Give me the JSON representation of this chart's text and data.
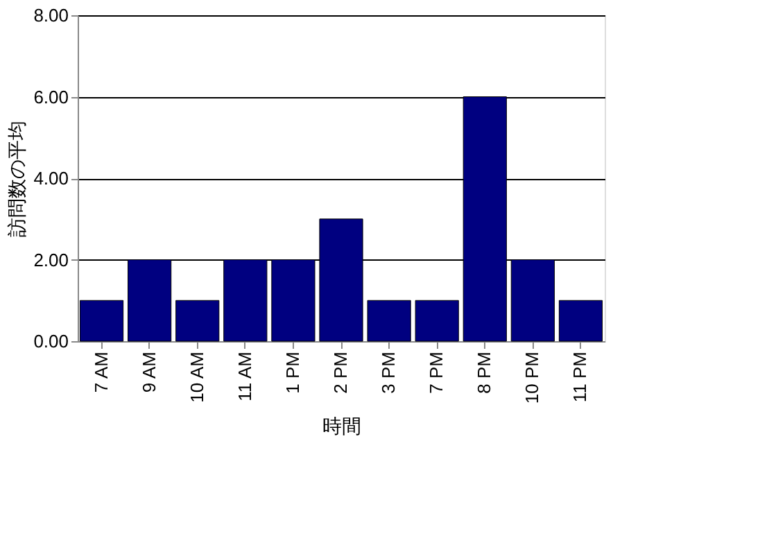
{
  "chart_data": {
    "type": "bar",
    "xlabel": "時間",
    "ylabel": "訪問数の平均",
    "categories": [
      "7 AM",
      "9 AM",
      "10 AM",
      "11 AM",
      "1 PM",
      "2 PM",
      "3 PM",
      "7 PM",
      "8 PM",
      "10 PM",
      "11 PM"
    ],
    "values": [
      1,
      2,
      1,
      2,
      2,
      3,
      1,
      1,
      6,
      2,
      1
    ],
    "color": "#000080",
    "ylim": [
      0,
      8
    ],
    "yticks": [
      {
        "value": 0,
        "label": "0.00"
      },
      {
        "value": 2,
        "label": "2.00"
      },
      {
        "value": 4,
        "label": "4.00"
      },
      {
        "value": 6,
        "label": "6.00"
      },
      {
        "value": 8,
        "label": "8.00"
      }
    ],
    "grid": "y"
  }
}
